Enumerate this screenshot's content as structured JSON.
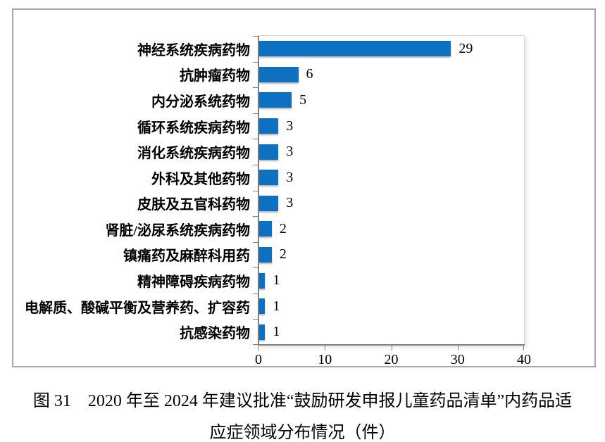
{
  "figure": {
    "caption_line1": "图 31　2020 年至 2024 年建议批准“鼓励研发申报儿童药品清单”内药品适",
    "caption_line2": "应症领域分布情况（件）"
  },
  "chart_data": {
    "type": "bar",
    "orientation": "horizontal",
    "title": "",
    "xlabel": "",
    "ylabel": "",
    "categories": [
      "神经系统疾病药物",
      "抗肿瘤药物",
      "内分泌系统药物",
      "循环系统疾病药物",
      "消化系统疾病药物",
      "外科及其他药物",
      "皮肤及五官科药物",
      "肾脏/泌尿系统疾病药物",
      "镇痛药及麻醉科用药",
      "精神障碍疾病药物",
      "电解质、酸碱平衡及营养药、扩容药",
      "抗感染药物"
    ],
    "values": [
      29,
      6,
      5,
      3,
      3,
      3,
      3,
      2,
      2,
      1,
      1,
      1
    ],
    "data_labels": [
      "29",
      "6",
      "5",
      "3",
      "3",
      "3",
      "3",
      "2",
      "2",
      "1",
      "1",
      "1"
    ],
    "xlim": [
      0,
      40
    ],
    "x_ticks": [
      0,
      10,
      20,
      30,
      40
    ],
    "x_tick_labels": [
      "0",
      "10",
      "20",
      "30",
      "40"
    ],
    "bar_color": "#0e70c0",
    "axis_color": "#7f7f7f",
    "grid": false,
    "legend": false
  }
}
